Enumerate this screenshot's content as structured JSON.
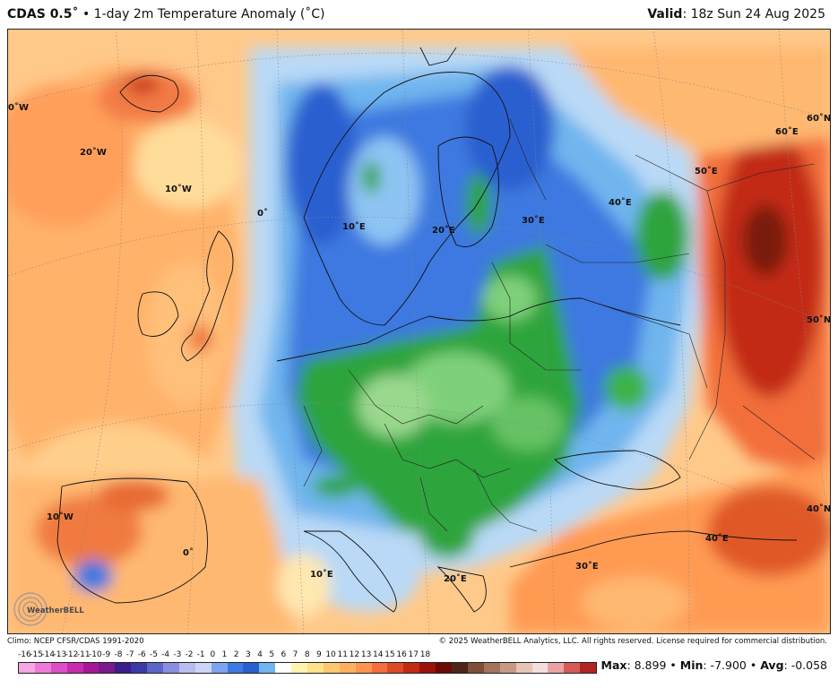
{
  "header": {
    "model": "CDAS 0.5˚",
    "bullet": "•",
    "title": "1-day 2m Temperature Anomaly (˚C)",
    "valid_label": "Valid",
    "valid_value": ": 18z Sun 24 Aug 2025"
  },
  "map": {
    "grid_labels": [
      "0˚W",
      "20˚W",
      "10˚W",
      "0˚",
      "10˚E",
      "20˚E",
      "30˚E",
      "40˚E",
      "50˚E",
      "60˚E",
      "60˚N",
      "50˚N",
      "40˚N",
      "10˚W",
      "0˚",
      "10˚E",
      "20˚E",
      "30˚E",
      "40˚E"
    ],
    "logo_text": "WeatherBELL"
  },
  "footer": {
    "climo": "Climo: NCEP CFSR/CDAS 1991-2020",
    "copyright": "© 2025 WeatherBELL Analytics, LLC. All rights reserved. License required for commercial distribution."
  },
  "colorbar": {
    "labels": [
      "-16",
      "-15",
      "-14",
      "-13",
      "-12",
      "-11",
      "-10",
      "-9",
      "-8",
      "-7",
      "-6",
      "-5",
      "-4",
      "-3",
      "-2",
      "-1",
      "0",
      "1",
      "2",
      "3",
      "4",
      "5",
      "6",
      "7",
      "8",
      "9",
      "10",
      "11",
      "12",
      "13",
      "14",
      "15",
      "16",
      "17",
      "18"
    ],
    "colors": [
      "#f7a6e6",
      "#ee7ad8",
      "#dc4fc4",
      "#c72aad",
      "#a71696",
      "#7a1a8a",
      "#3b1d8c",
      "#3c3aa8",
      "#5b66c8",
      "#8a8ee0",
      "#b8bdf0",
      "#ccd5f7",
      "#7ea4ee",
      "#3d79e0",
      "#2a5fcf",
      "#6fb5ee",
      "#ffffff",
      "#fff3b0",
      "#ffe28a",
      "#ffc870",
      "#ffb05e",
      "#ff944f",
      "#f26e3a",
      "#de4a25",
      "#c22a14",
      "#9c1208",
      "#6b0a04",
      "#4c2618",
      "#7e4e38",
      "#a4735e",
      "#c89a86",
      "#e6c5b6",
      "#f3dede",
      "#e9a3a3",
      "#d65a5a",
      "#b22424"
    ]
  },
  "stats": {
    "max_label": "Max",
    "max_value": ": 8.899",
    "sep1": " • ",
    "min_label": "Min",
    "min_value": ": -7.900",
    "sep2": " • ",
    "avg_label": "Avg",
    "avg_value": ": -0.058"
  }
}
